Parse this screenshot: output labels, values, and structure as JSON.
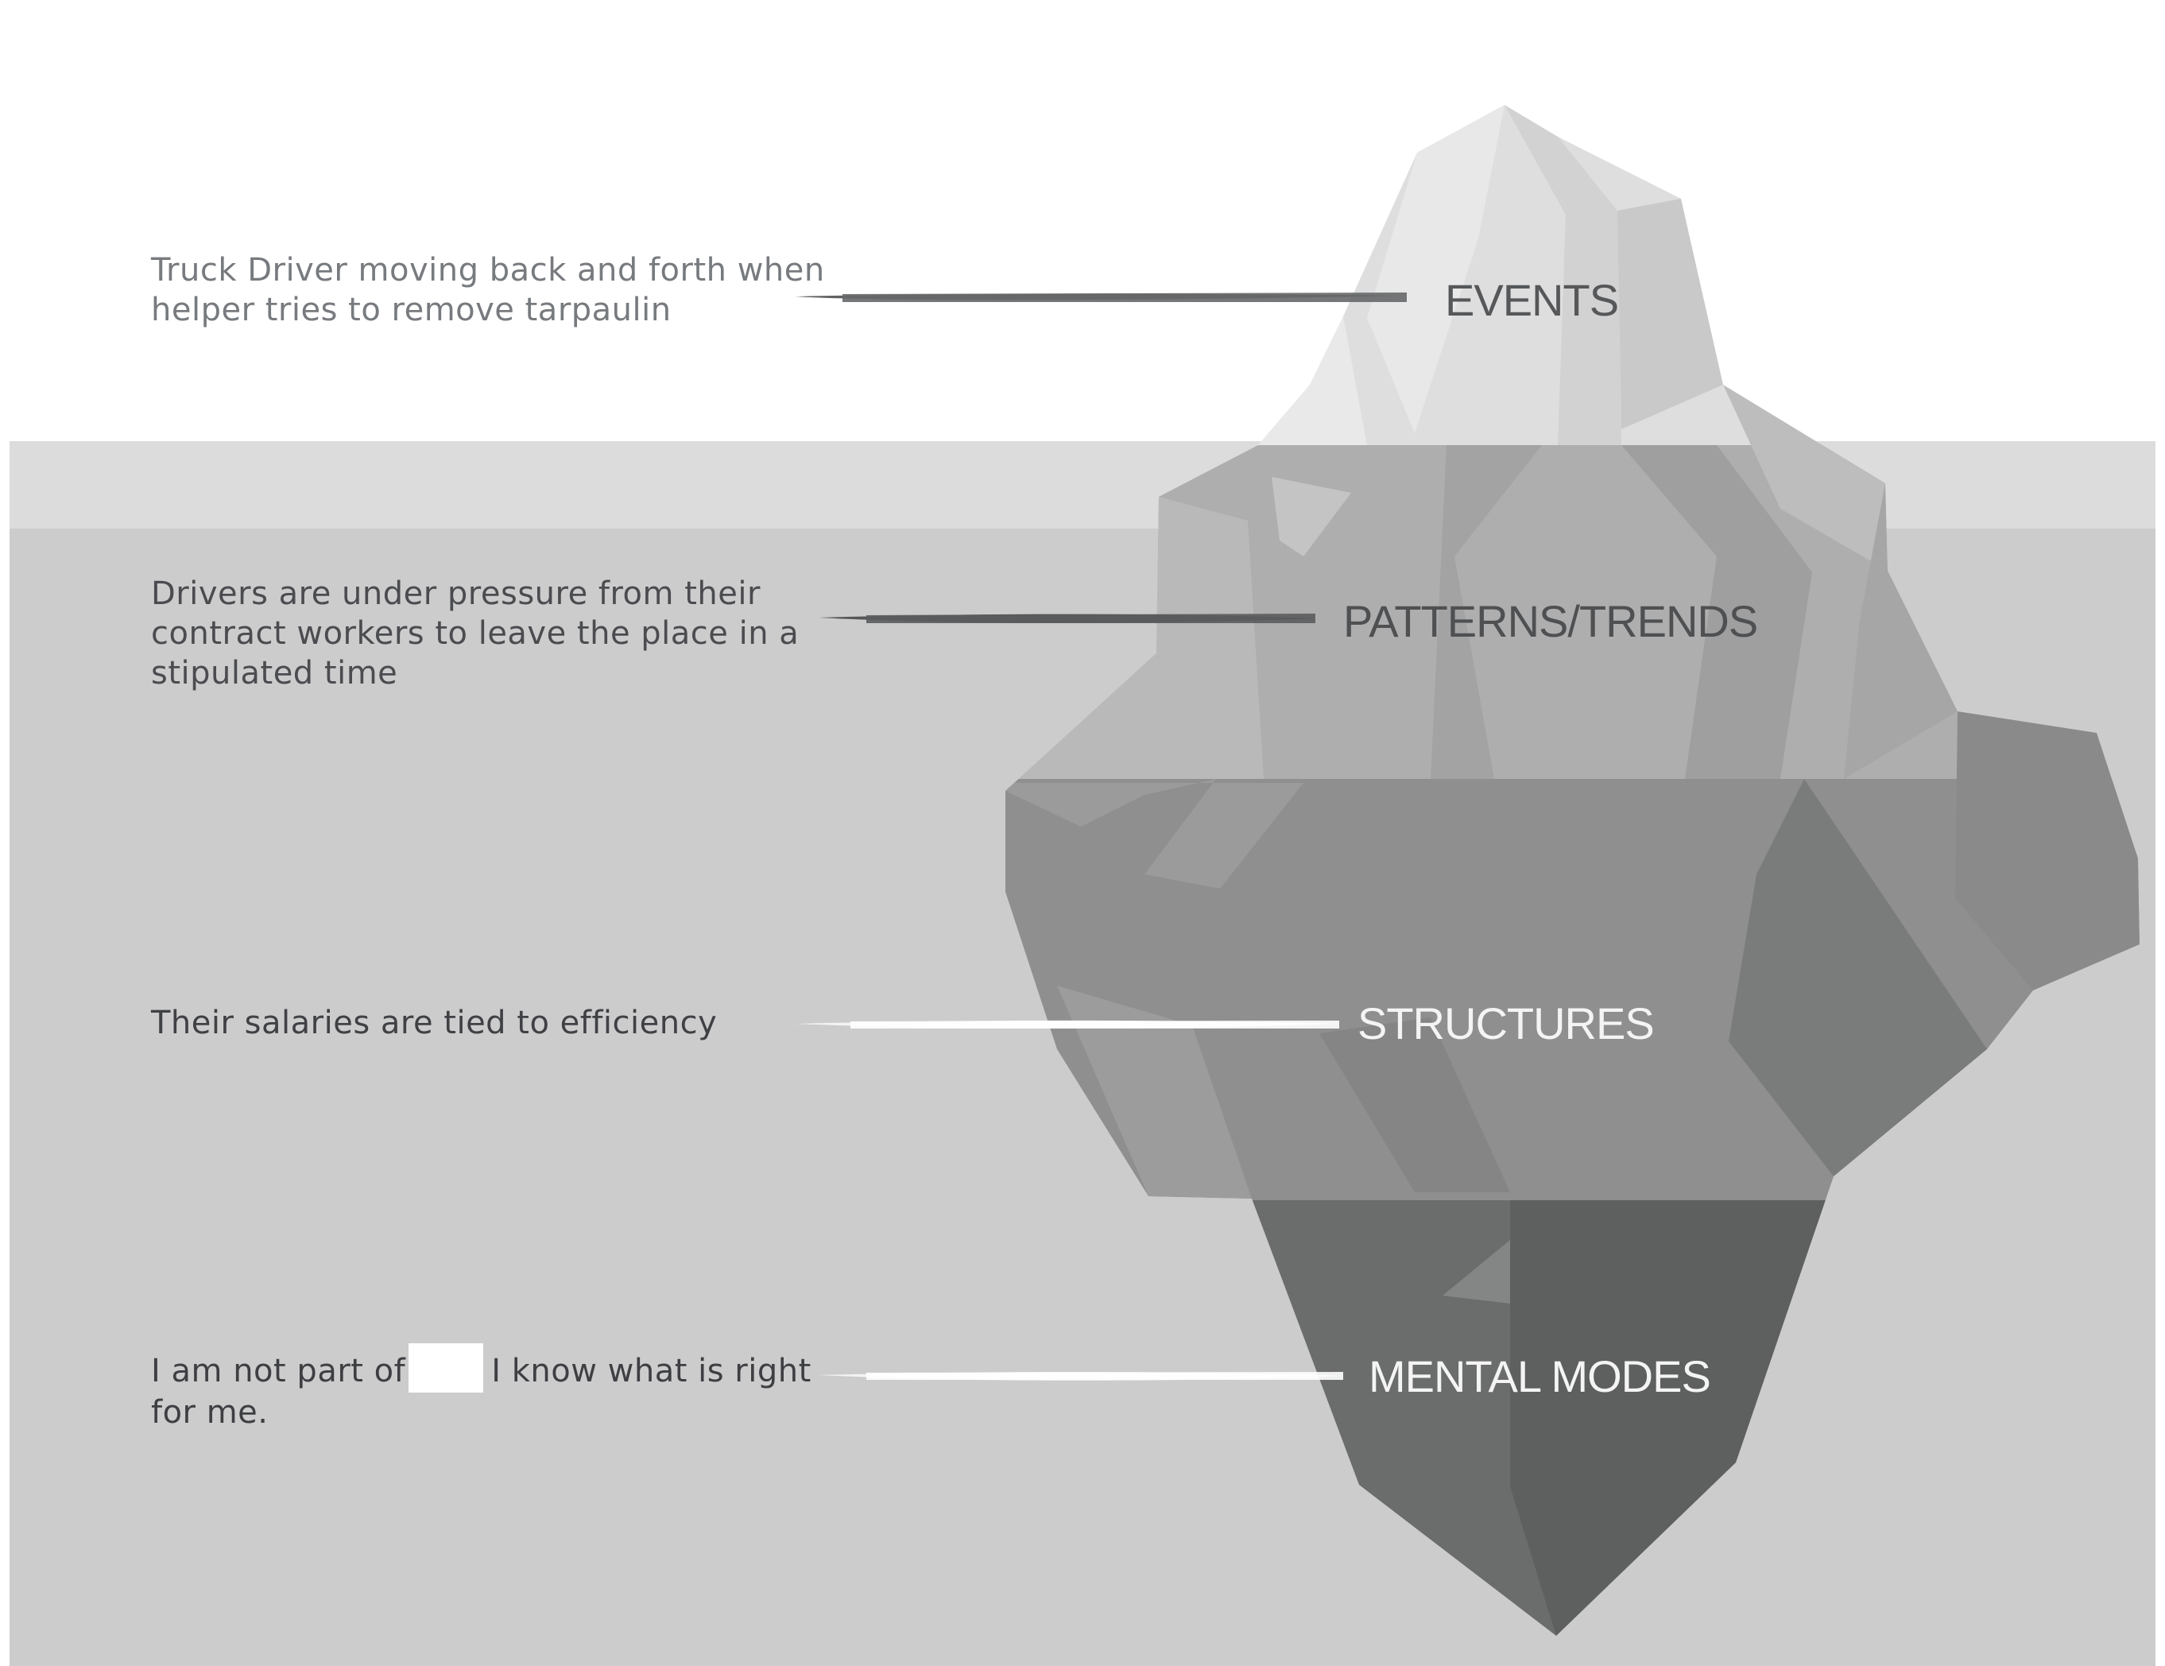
{
  "layers": [
    {
      "label": "EVENTS",
      "description": "Truck Driver moving back and forth when helper tries to remove tarpaulin"
    },
    {
      "label": "PATTERNS/TRENDS",
      "description": "Drivers are under pressure from their contract workers to leave the place in a stipulated time"
    },
    {
      "label": "STRUCTURES",
      "description": "Their salaries are tied to efficiency"
    },
    {
      "label": "MENTAL MODES",
      "description_before_blank": "I am not part of",
      "description_after_blank": "I know what is right for me."
    }
  ],
  "colors": {
    "sky": "#ffffff",
    "water_surface": "#dcdcdd",
    "water": "#cdcccd",
    "ice_top": "#dededf",
    "ice_layer_2": "#aeaeaf",
    "ice_layer_3": "#8f8f90",
    "ice_layer_4": "#6b6c6c"
  },
  "icons": [
    "iceberg-illustration",
    "dark-stroke-line",
    "white-stroke-line"
  ]
}
